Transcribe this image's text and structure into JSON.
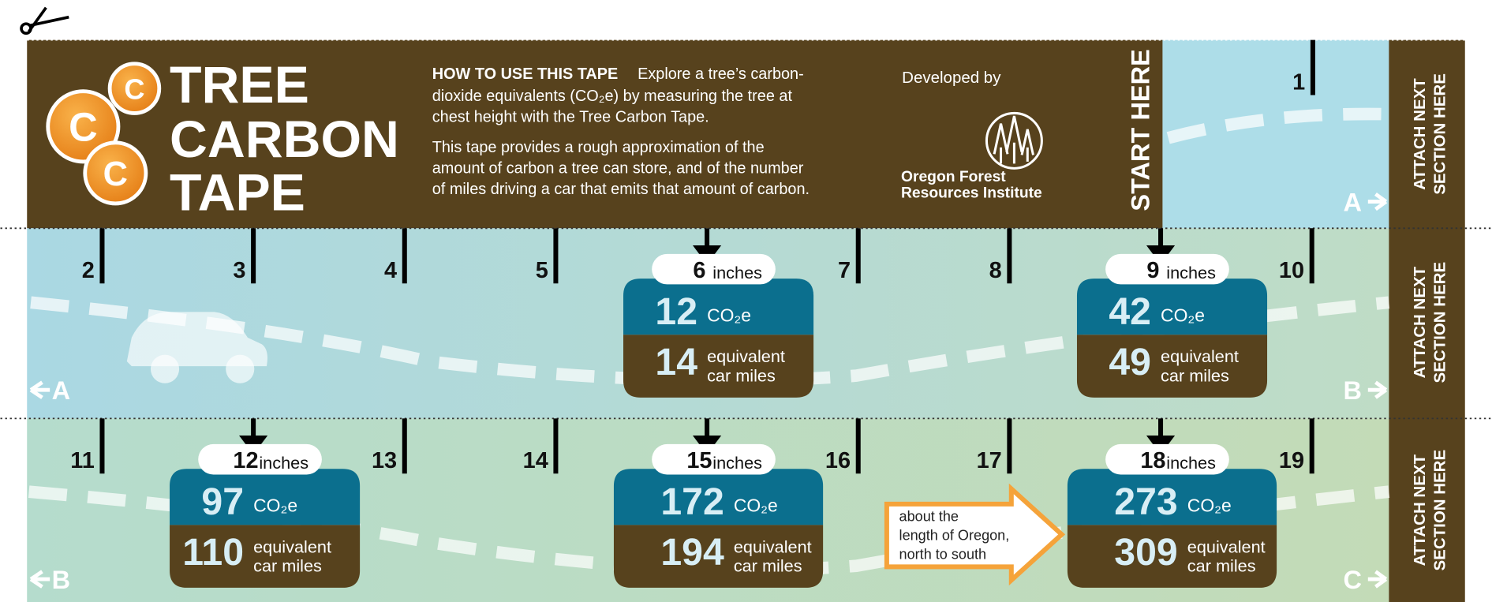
{
  "header": {
    "title": [
      "TREE",
      "CARBON",
      "TAPE"
    ],
    "logo_letters": [
      "C",
      "C",
      "C"
    ],
    "how_to_heading": "HOW TO USE THIS TAPE",
    "how_to_lines": [
      "Explore a tree’s carbon-",
      "dioxide equivalents (CO₂e) by measuring the tree at",
      "chest height with the Tree Carbon Tape."
    ],
    "about_lines": [
      "This tape provides a rough approximation of the",
      "amount of carbon a tree can store, and of the number",
      "of miles driving a car that emits that amount of carbon."
    ],
    "developed_by": "Developed by",
    "org": [
      "Oregon Forest",
      "Resources Institute"
    ],
    "start": "START HERE"
  },
  "tape": {
    "ticks": [
      1,
      2,
      3,
      4,
      5,
      6,
      7,
      8,
      9,
      10,
      11,
      12,
      13,
      14,
      15,
      16,
      17,
      18,
      19
    ],
    "attach": [
      [
        "ATTACH NEXT",
        "SECTION HERE"
      ],
      [
        "ATTACH NEXT",
        "SECTION HERE"
      ],
      [
        "ATTACH NEXT",
        "SECTION HERE"
      ]
    ],
    "markers": [
      {
        "left": null,
        "right": "A"
      },
      {
        "left": "A",
        "right": "B"
      },
      {
        "left": "B",
        "right": "C"
      }
    ]
  },
  "callouts": [
    {
      "inches": 6,
      "unit": "inches",
      "co2e": 12,
      "co2e_label": "CO₂e",
      "miles": 14,
      "miles_label": [
        "equivalent",
        "car miles"
      ]
    },
    {
      "inches": 9,
      "unit": "inches",
      "co2e": 42,
      "co2e_label": "CO₂e",
      "miles": 49,
      "miles_label": [
        "equivalent",
        "car miles"
      ]
    },
    {
      "inches": 12,
      "unit": "inches",
      "co2e": 97,
      "co2e_label": "CO₂e",
      "miles": 110,
      "miles_label": [
        "equivalent",
        "car miles"
      ]
    },
    {
      "inches": 15,
      "unit": "inches",
      "co2e": 172,
      "co2e_label": "CO₂e",
      "miles": 194,
      "miles_label": [
        "equivalent",
        "car miles"
      ]
    },
    {
      "inches": 18,
      "unit": "inches",
      "co2e": 273,
      "co2e_label": "CO₂e",
      "miles": 309,
      "miles_label": [
        "equivalent",
        "car miles"
      ]
    }
  ],
  "note": [
    "about the",
    "length of Oregon,",
    "north to south"
  ]
}
